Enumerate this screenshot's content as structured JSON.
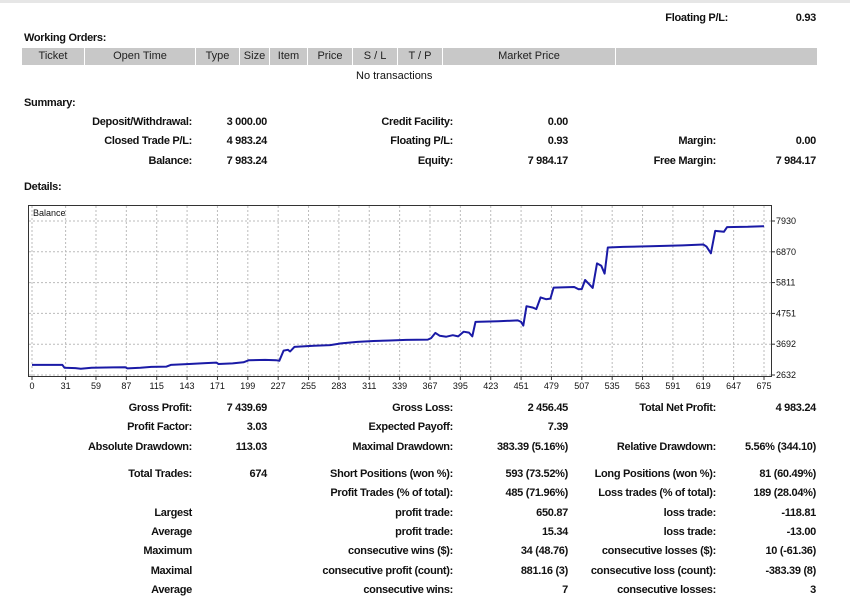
{
  "top": {
    "floating_label": "Floating P/L:",
    "floating_value": "0.93"
  },
  "working_orders": {
    "title": "Working Orders:",
    "columns": [
      "Ticket",
      "Open Time",
      "Type",
      "Size",
      "Item",
      "Price",
      "S / L",
      "T / P",
      "Market Price",
      ""
    ],
    "empty_text": "No transactions"
  },
  "summary": {
    "title": "Summary:",
    "rows": [
      [
        [
          "Deposit/Withdrawal:",
          "3 000.00"
        ],
        [
          "Credit Facility:",
          "0.00"
        ],
        [
          "",
          ""
        ]
      ],
      [
        [
          "Closed Trade P/L:",
          "4 983.24"
        ],
        [
          "Floating P/L:",
          "0.93"
        ],
        [
          "Margin:",
          "0.00"
        ]
      ],
      [
        [
          "Balance:",
          "7 983.24"
        ],
        [
          "Equity:",
          "7 984.17"
        ],
        [
          "Free Margin:",
          "7 984.17"
        ]
      ]
    ]
  },
  "details": {
    "title": "Details:",
    "rows": [
      [
        [
          "Gross Profit:",
          "7 439.69"
        ],
        [
          "Gross Loss:",
          "2 456.45"
        ],
        [
          "Total Net Profit:",
          "4 983.24"
        ]
      ],
      [
        [
          "Profit Factor:",
          "3.03"
        ],
        [
          "Expected Payoff:",
          "7.39"
        ],
        [
          "",
          ""
        ]
      ],
      [
        [
          "Absolute Drawdown:",
          "113.03"
        ],
        [
          "Maximal Drawdown:",
          "383.39 (5.16%)"
        ],
        [
          "Relative Drawdown:",
          "5.56% (344.10)"
        ]
      ],
      [
        [
          "Total Trades:",
          "674"
        ],
        [
          "Short Positions (won %):",
          "593 (73.52%)"
        ],
        [
          "Long Positions (won %):",
          "81 (60.49%)"
        ]
      ],
      [
        [
          "",
          ""
        ],
        [
          "Profit Trades (% of total):",
          "485 (71.96%)"
        ],
        [
          "Loss trades (% of total):",
          "189 (28.04%)"
        ]
      ],
      [
        [
          "Largest",
          ""
        ],
        [
          "profit trade:",
          "650.87"
        ],
        [
          "loss trade:",
          "-118.81"
        ]
      ],
      [
        [
          "Average",
          ""
        ],
        [
          "profit trade:",
          "15.34"
        ],
        [
          "loss trade:",
          "-13.00"
        ]
      ],
      [
        [
          "Maximum",
          ""
        ],
        [
          "consecutive wins ($):",
          "34 (48.76)"
        ],
        [
          "consecutive losses ($):",
          "10 (-61.36)"
        ]
      ],
      [
        [
          "Maximal",
          ""
        ],
        [
          "consecutive profit (count):",
          "881.16 (3)"
        ],
        [
          "consecutive loss (count):",
          "-383.39 (8)"
        ]
      ],
      [
        [
          "Average",
          ""
        ],
        [
          "consecutive wins:",
          "7"
        ],
        [
          "consecutive losses:",
          "3"
        ]
      ]
    ]
  },
  "chart_data": {
    "type": "line",
    "title": "Balance",
    "xlabel": "",
    "ylabel": "",
    "x_ticks": [
      0,
      31,
      59,
      87,
      115,
      143,
      171,
      199,
      227,
      255,
      283,
      311,
      339,
      367,
      395,
      423,
      451,
      479,
      507,
      535,
      563,
      591,
      619,
      647,
      675
    ],
    "y_ticks": [
      2632,
      3692,
      4751,
      5811,
      6870,
      7930
    ],
    "xlim": [
      0,
      678
    ],
    "ylim": [
      2632,
      8030
    ],
    "grid": true,
    "line_color": "#1a1aa6",
    "series": [
      {
        "name": "Balance",
        "points": [
          [
            0,
            2980
          ],
          [
            28,
            2980
          ],
          [
            30,
            2880
          ],
          [
            40,
            2870
          ],
          [
            45,
            2850
          ],
          [
            55,
            2880
          ],
          [
            75,
            2895
          ],
          [
            86,
            2900
          ],
          [
            88,
            2860
          ],
          [
            100,
            2880
          ],
          [
            110,
            2910
          ],
          [
            124,
            2920
          ],
          [
            128,
            2980
          ],
          [
            145,
            3010
          ],
          [
            160,
            3040
          ],
          [
            170,
            3060
          ],
          [
            172,
            3010
          ],
          [
            185,
            3030
          ],
          [
            195,
            3070
          ],
          [
            200,
            3140
          ],
          [
            215,
            3150
          ],
          [
            225,
            3140
          ],
          [
            228,
            3120
          ],
          [
            232,
            3470
          ],
          [
            236,
            3500
          ],
          [
            238,
            3440
          ],
          [
            242,
            3600
          ],
          [
            260,
            3640
          ],
          [
            275,
            3660
          ],
          [
            285,
            3720
          ],
          [
            300,
            3770
          ],
          [
            315,
            3800
          ],
          [
            330,
            3820
          ],
          [
            345,
            3840
          ],
          [
            365,
            3850
          ],
          [
            368,
            3900
          ],
          [
            372,
            4080
          ],
          [
            376,
            3980
          ],
          [
            382,
            3950
          ],
          [
            388,
            4000
          ],
          [
            393,
            3960
          ],
          [
            398,
            4120
          ],
          [
            403,
            4090
          ],
          [
            406,
            3960
          ],
          [
            409,
            4460
          ],
          [
            430,
            4480
          ],
          [
            448,
            4510
          ],
          [
            451,
            4460
          ],
          [
            453,
            4330
          ],
          [
            456,
            5000
          ],
          [
            462,
            4950
          ],
          [
            465,
            4900
          ],
          [
            469,
            5300
          ],
          [
            474,
            5240
          ],
          [
            478,
            5260
          ],
          [
            481,
            5640
          ],
          [
            500,
            5660
          ],
          [
            504,
            5580
          ],
          [
            507,
            5590
          ],
          [
            510,
            5900
          ],
          [
            514,
            5750
          ],
          [
            517,
            5630
          ],
          [
            521,
            6470
          ],
          [
            525,
            6390
          ],
          [
            528,
            6120
          ],
          [
            531,
            7020
          ],
          [
            545,
            7040
          ],
          [
            570,
            7060
          ],
          [
            600,
            7090
          ],
          [
            619,
            7120
          ],
          [
            622,
            7050
          ],
          [
            626,
            6820
          ],
          [
            630,
            7590
          ],
          [
            638,
            7560
          ],
          [
            641,
            7720
          ],
          [
            660,
            7730
          ],
          [
            675,
            7750
          ]
        ]
      }
    ]
  }
}
